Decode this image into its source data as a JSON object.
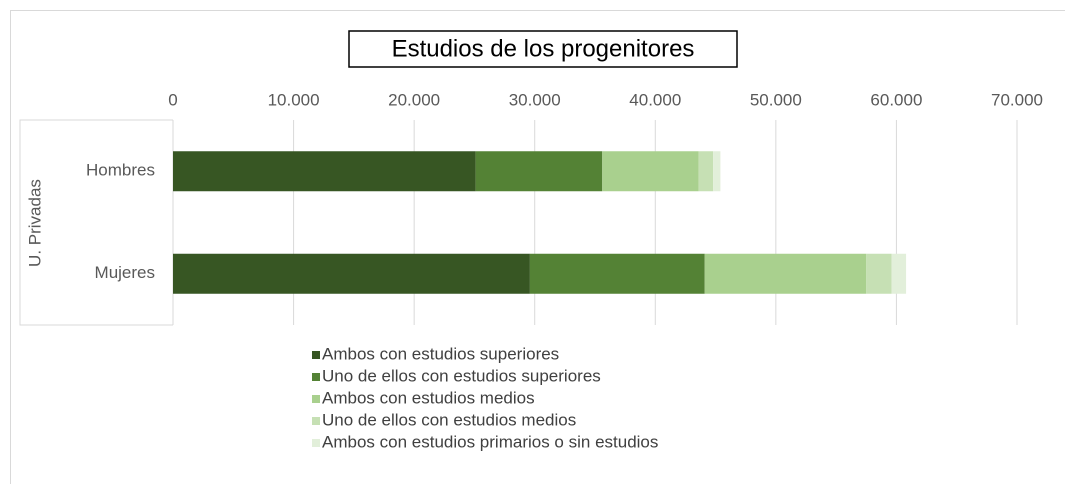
{
  "chart_data": {
    "type": "bar",
    "orientation": "horizontal",
    "stacked": true,
    "title": "Estudios de los progenitores",
    "group": "U. Privadas",
    "categories": [
      "Hombres",
      "Mujeres"
    ],
    "series": [
      {
        "name": "Ambos con estudios superiores",
        "color": "#375623",
        "values": [
          25100,
          29600
        ]
      },
      {
        "name": "Uno de ellos con estudios superiores",
        "color": "#548235",
        "values": [
          10500,
          14500
        ]
      },
      {
        "name": "Ambos con estudios medios",
        "color": "#a9d08e",
        "values": [
          8000,
          13400
        ]
      },
      {
        "name": "Uno de ellos con estudios medios",
        "color": "#c6e0b4",
        "values": [
          1200,
          2100
        ]
      },
      {
        "name": "Ambos con estudios primarios o sin estudios",
        "color": "#e2efda",
        "values": [
          600,
          1200
        ]
      }
    ],
    "xlim": [
      0,
      70000
    ],
    "xticks": [
      0,
      {
        "value": 10000,
        "label": "10.000"
      },
      {
        "value": 20000,
        "label": "20.000"
      },
      {
        "value": 30000,
        "label": "30.000"
      },
      {
        "value": 40000,
        "label": "40.000"
      },
      {
        "value": 50000,
        "label": "50.000"
      },
      {
        "value": 60000,
        "label": "60.000"
      },
      {
        "value": 70000,
        "label": "70.000"
      }
    ],
    "grid": true,
    "legend": "bottom"
  }
}
